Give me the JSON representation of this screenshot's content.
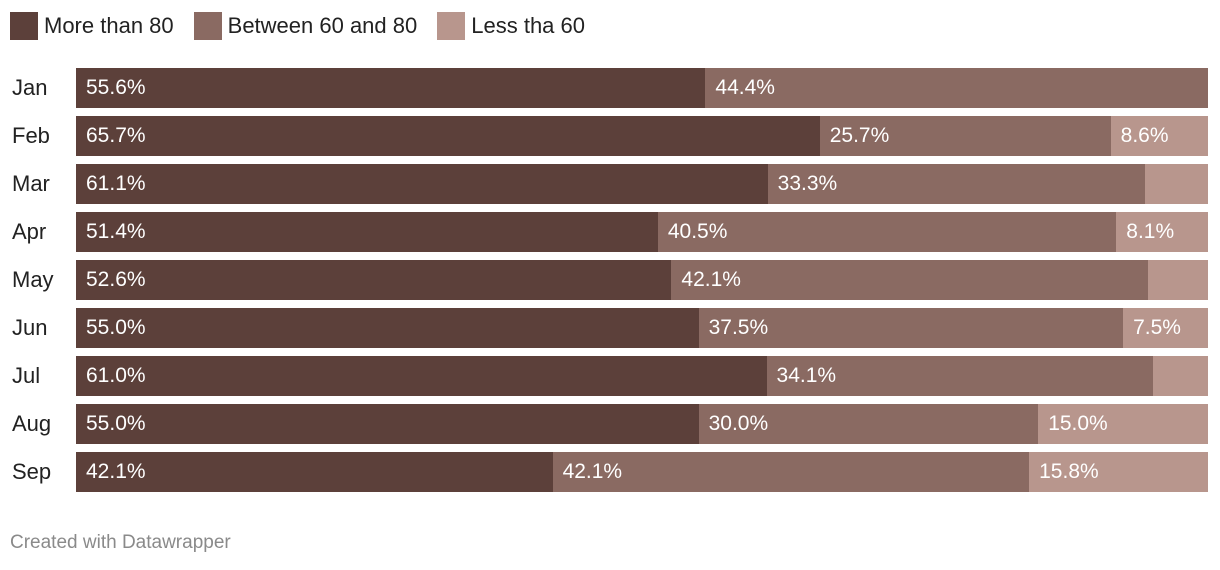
{
  "chart_data": {
    "type": "bar",
    "orientation": "horizontal",
    "stacked": true,
    "normalized": true,
    "title": "",
    "categories": [
      "Jan",
      "Feb",
      "Mar",
      "Apr",
      "May",
      "Jun",
      "Jul",
      "Aug",
      "Sep"
    ],
    "series": [
      {
        "name": "More than 80",
        "color": "#5c403a",
        "values": [
          55.6,
          65.7,
          61.1,
          51.4,
          52.6,
          55.0,
          61.0,
          55.0,
          42.1
        ],
        "labels": [
          "55.6%",
          "65.7%",
          "61.1%",
          "51.4%",
          "52.6%",
          "55.0%",
          "61.0%",
          "55.0%",
          "42.1%"
        ]
      },
      {
        "name": "Between 60 and 80",
        "color": "#8a6a62",
        "values": [
          44.4,
          25.7,
          33.3,
          40.5,
          42.1,
          37.5,
          34.1,
          30.0,
          42.1
        ],
        "labels": [
          "44.4%",
          "25.7%",
          "33.3%",
          "40.5%",
          "42.1%",
          "37.5%",
          "34.1%",
          "30.0%",
          "42.1%"
        ]
      },
      {
        "name": "Less tha 60",
        "color": "#b8968d",
        "values": [
          0,
          8.6,
          5.6,
          8.1,
          5.3,
          7.5,
          4.9,
          15.0,
          15.8
        ],
        "labels": [
          "",
          "8.6%",
          "",
          "8.1%",
          "",
          "7.5%",
          "",
          "15.0%",
          "15.8%"
        ]
      }
    ],
    "legend_position": "top-left",
    "xlim": [
      0,
      100
    ]
  },
  "footer": {
    "credit": "Created with Datawrapper"
  }
}
